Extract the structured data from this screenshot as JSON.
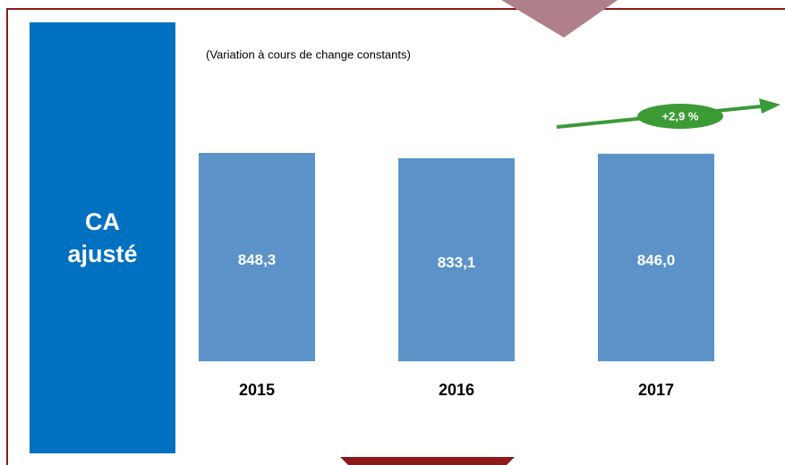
{
  "chart_data": {
    "type": "bar",
    "title": "CA ajusté",
    "subtitle": "(Variation à cours de change constants)",
    "categories": [
      "2015",
      "2016",
      "2017"
    ],
    "values": [
      848.3,
      833.1,
      846.0
    ],
    "value_labels": [
      "848,3",
      "833,1",
      "846,0"
    ],
    "color": "#5b93c9",
    "annotation": "+2,9 %"
  }
}
